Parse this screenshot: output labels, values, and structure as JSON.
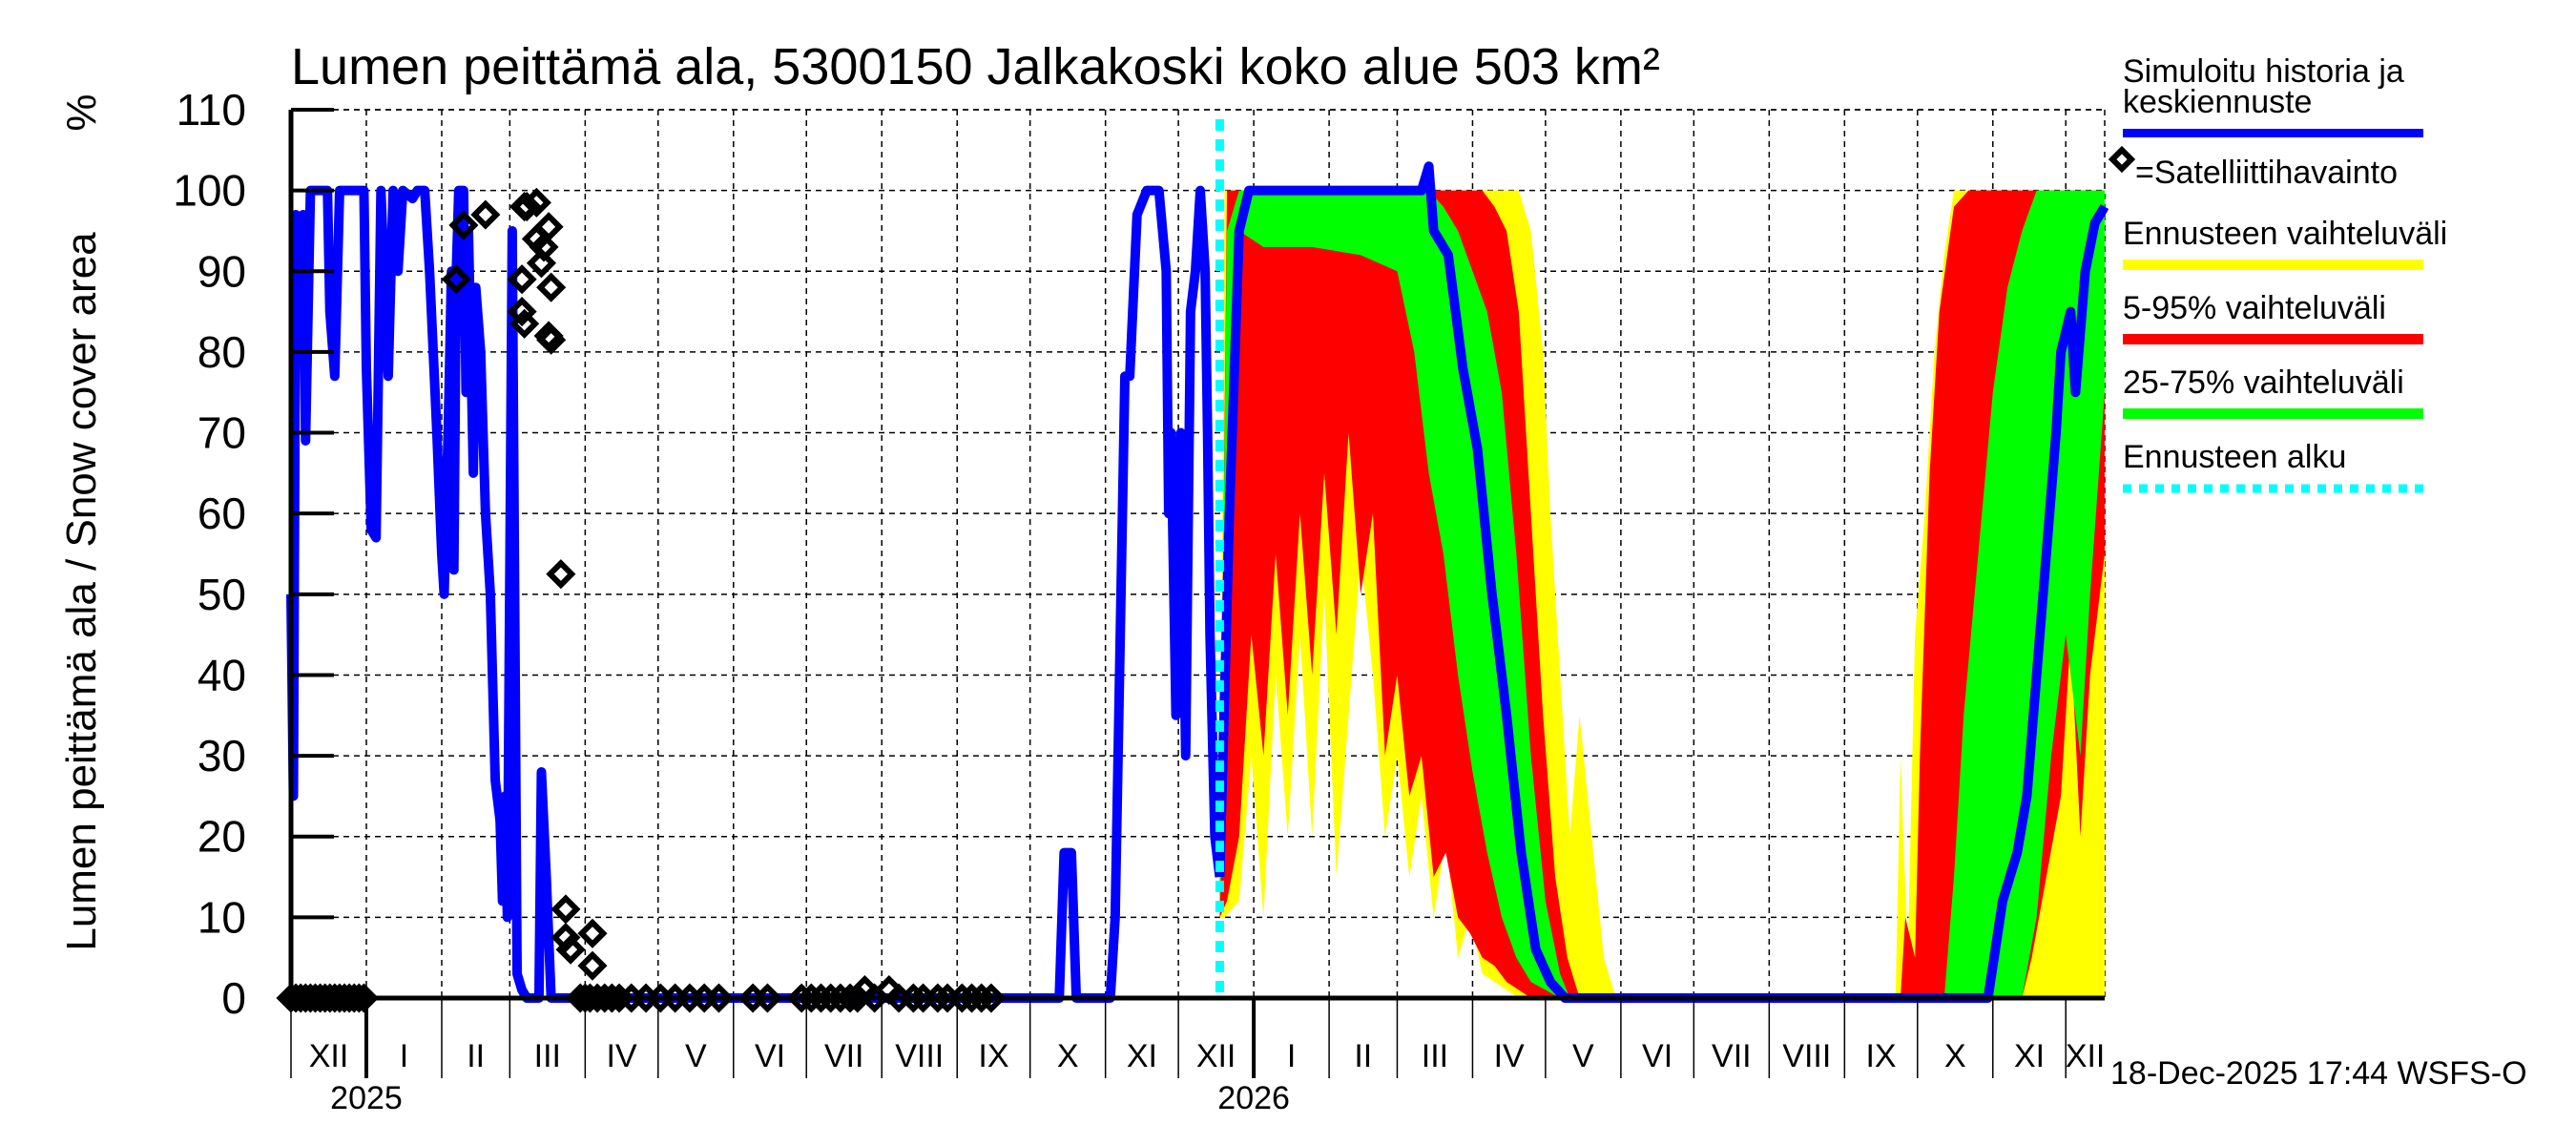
{
  "chart_data": {
    "type": "area",
    "title": "Lumen peittämä ala, 5300150 Jalkakoski koko alue 503 km²",
    "ylabel": "Lumen peittämä ala / Snow cover area",
    "yunit": "%",
    "ylim": [
      0,
      110
    ],
    "yticks": [
      0,
      10,
      20,
      30,
      40,
      50,
      60,
      70,
      80,
      90,
      100,
      110
    ],
    "x_unit": "days since 2024-12-01",
    "xlim": [
      0,
      746
    ],
    "grid": true,
    "legend_position": "right",
    "months": [
      {
        "label": "XII",
        "start": 0
      },
      {
        "label": "I",
        "start": 31
      },
      {
        "label": "II",
        "start": 62
      },
      {
        "label": "III",
        "start": 90
      },
      {
        "label": "IV",
        "start": 121
      },
      {
        "label": "V",
        "start": 151
      },
      {
        "label": "VI",
        "start": 182
      },
      {
        "label": "VII",
        "start": 212
      },
      {
        "label": "VIII",
        "start": 243
      },
      {
        "label": "IX",
        "start": 274
      },
      {
        "label": "X",
        "start": 304
      },
      {
        "label": "XI",
        "start": 335
      },
      {
        "label": "XII",
        "start": 365
      },
      {
        "label": "I",
        "start": 396
      },
      {
        "label": "II",
        "start": 427
      },
      {
        "label": "III",
        "start": 455
      },
      {
        "label": "IV",
        "start": 486
      },
      {
        "label": "V",
        "start": 516
      },
      {
        "label": "VI",
        "start": 547
      },
      {
        "label": "VII",
        "start": 577
      },
      {
        "label": "VIII",
        "start": 608
      },
      {
        "label": "IX",
        "start": 639
      },
      {
        "label": "X",
        "start": 669
      },
      {
        "label": "XI",
        "start": 700
      },
      {
        "label": "XII",
        "start": 730
      }
    ],
    "years": [
      {
        "label": "2025",
        "start": 31
      },
      {
        "label": "2026",
        "start": 396
      }
    ],
    "forecast_start": 382,
    "legend": {
      "history": "Simuloitu historia ja keskiennuste",
      "history_line1": "Simuloitu historia ja",
      "history_line2": "keskiennuste",
      "satellite": "=Satelliittihavainto",
      "range": "Ennusteen vaihteluväli",
      "p5_95": "5-95% vaihteluväli",
      "p25_75": "25-75% vaihteluväli",
      "start": "Ennusteen alku"
    },
    "colors": {
      "history": "#0000ff",
      "range": "#ffff00",
      "p5_95": "#ff0000",
      "p25_75": "#00ff00",
      "start": "#00ffff",
      "satellite": "#000000"
    },
    "history": [
      [
        0,
        50
      ],
      [
        1,
        25
      ],
      [
        2,
        97
      ],
      [
        4,
        85
      ],
      [
        5,
        97
      ],
      [
        6,
        69
      ],
      [
        8,
        100
      ],
      [
        15,
        100
      ],
      [
        16,
        85
      ],
      [
        18,
        77
      ],
      [
        20,
        100
      ],
      [
        30,
        100
      ],
      [
        31,
        78
      ],
      [
        33,
        58
      ],
      [
        35,
        57
      ],
      [
        37,
        100
      ],
      [
        40,
        77
      ],
      [
        42,
        100
      ],
      [
        44,
        90
      ],
      [
        46,
        100
      ],
      [
        50,
        99
      ],
      [
        52,
        100
      ],
      [
        55,
        100
      ],
      [
        57,
        90
      ],
      [
        60,
        70
      ],
      [
        62,
        55
      ],
      [
        63,
        50
      ],
      [
        65,
        75
      ],
      [
        66,
        90
      ],
      [
        67,
        53
      ],
      [
        68,
        90
      ],
      [
        69,
        100
      ],
      [
        71,
        100
      ],
      [
        72,
        75
      ],
      [
        73,
        95
      ],
      [
        75,
        65
      ],
      [
        76,
        88
      ],
      [
        78,
        80
      ],
      [
        80,
        60
      ],
      [
        82,
        50
      ],
      [
        84,
        27
      ],
      [
        86,
        22
      ],
      [
        87,
        12
      ],
      [
        88,
        25
      ],
      [
        89,
        10
      ],
      [
        91,
        95
      ],
      [
        92,
        50
      ],
      [
        93,
        3
      ],
      [
        95,
        1
      ],
      [
        97,
        0
      ],
      [
        100,
        0
      ],
      [
        102,
        0
      ],
      [
        103,
        28
      ],
      [
        105,
        15
      ],
      [
        107,
        0
      ],
      [
        316,
        0
      ],
      [
        318,
        18
      ],
      [
        321,
        18
      ],
      [
        323,
        0
      ],
      [
        337,
        0
      ],
      [
        339,
        10
      ],
      [
        343,
        77
      ],
      [
        345,
        77
      ],
      [
        348,
        97
      ],
      [
        352,
        100
      ],
      [
        357,
        100
      ],
      [
        360,
        90
      ],
      [
        361,
        60
      ],
      [
        362,
        70
      ],
      [
        364,
        35
      ],
      [
        366,
        70
      ],
      [
        368,
        30
      ],
      [
        370,
        85
      ],
      [
        372,
        90
      ],
      [
        374,
        100
      ],
      [
        376,
        90
      ],
      [
        377,
        70
      ],
      [
        378,
        45
      ],
      [
        380,
        20
      ],
      [
        382,
        15
      ]
    ],
    "median_forecast": [
      [
        382,
        15
      ],
      [
        386,
        60
      ],
      [
        390,
        95
      ],
      [
        394,
        100
      ],
      [
        465,
        100
      ],
      [
        468,
        103
      ],
      [
        470,
        95
      ],
      [
        476,
        92
      ],
      [
        482,
        78
      ],
      [
        488,
        68
      ],
      [
        494,
        50
      ],
      [
        500,
        35
      ],
      [
        506,
        18
      ],
      [
        512,
        6
      ],
      [
        518,
        2
      ],
      [
        524,
        0
      ],
      [
        698,
        0
      ],
      [
        700,
        4
      ],
      [
        704,
        12
      ],
      [
        710,
        18
      ],
      [
        714,
        25
      ],
      [
        718,
        40
      ],
      [
        722,
        55
      ],
      [
        726,
        70
      ],
      [
        728,
        80
      ],
      [
        732,
        85
      ],
      [
        734,
        75
      ],
      [
        738,
        90
      ],
      [
        742,
        96
      ],
      [
        746,
        98
      ]
    ],
    "range_band": [
      [
        [
          382,
          10,
          12
        ],
        [
          384,
          10,
          100
        ],
        [
          390,
          12,
          100
        ],
        [
          395,
          30,
          100
        ],
        [
          400,
          10,
          100
        ],
        [
          405,
          40,
          100
        ],
        [
          410,
          20,
          100
        ],
        [
          415,
          45,
          100
        ],
        [
          420,
          20,
          100
        ],
        [
          425,
          50,
          100
        ],
        [
          430,
          15,
          100
        ],
        [
          435,
          35,
          100
        ],
        [
          440,
          55,
          100
        ],
        [
          445,
          40,
          100
        ],
        [
          450,
          20,
          100
        ],
        [
          455,
          30,
          100
        ],
        [
          460,
          15,
          100
        ],
        [
          465,
          25,
          100
        ],
        [
          470,
          10,
          100
        ],
        [
          475,
          20,
          100
        ],
        [
          480,
          5,
          100
        ],
        [
          485,
          10,
          100
        ],
        [
          490,
          3,
          100
        ],
        [
          495,
          2,
          100
        ],
        [
          500,
          1,
          100
        ],
        [
          505,
          0,
          100
        ],
        [
          510,
          0,
          95
        ],
        [
          515,
          0,
          80
        ],
        [
          518,
          0,
          60
        ],
        [
          522,
          0,
          40
        ],
        [
          526,
          0,
          20
        ],
        [
          530,
          0,
          35
        ],
        [
          535,
          0,
          20
        ],
        [
          540,
          0,
          5
        ],
        [
          545,
          0,
          0
        ]
      ],
      [
        [
          660,
          0,
          0
        ],
        [
          662,
          0,
          30
        ],
        [
          665,
          0,
          5
        ],
        [
          668,
          0,
          45
        ],
        [
          672,
          0,
          60
        ],
        [
          676,
          0,
          80
        ],
        [
          680,
          0,
          92
        ],
        [
          684,
          0,
          100
        ],
        [
          746,
          0,
          100
        ]
      ]
    ],
    "p5_95_band": [
      [
        [
          382,
          10,
          15
        ],
        [
          385,
          12,
          100
        ],
        [
          390,
          20,
          100
        ],
        [
          395,
          45,
          100
        ],
        [
          400,
          30,
          100
        ],
        [
          405,
          55,
          100
        ],
        [
          410,
          35,
          100
        ],
        [
          415,
          60,
          100
        ],
        [
          420,
          40,
          100
        ],
        [
          425,
          65,
          100
        ],
        [
          430,
          45,
          100
        ],
        [
          435,
          70,
          100
        ],
        [
          440,
          50,
          100
        ],
        [
          445,
          60,
          100
        ],
        [
          450,
          30,
          100
        ],
        [
          455,
          40,
          100
        ],
        [
          460,
          25,
          100
        ],
        [
          465,
          30,
          100
        ],
        [
          470,
          15,
          100
        ],
        [
          475,
          18,
          100
        ],
        [
          480,
          10,
          100
        ],
        [
          485,
          8,
          100
        ],
        [
          490,
          5,
          100
        ],
        [
          495,
          4,
          98
        ],
        [
          500,
          2,
          95
        ],
        [
          505,
          1,
          85
        ],
        [
          510,
          0,
          60
        ],
        [
          515,
          0,
          35
        ],
        [
          520,
          0,
          15
        ],
        [
          525,
          0,
          5
        ],
        [
          530,
          0,
          0
        ]
      ],
      [
        [
          662,
          0,
          0
        ],
        [
          664,
          0,
          10
        ],
        [
          668,
          0,
          5
        ],
        [
          670,
          0,
          30
        ],
        [
          674,
          0,
          65
        ],
        [
          678,
          0,
          85
        ],
        [
          684,
          0,
          98
        ],
        [
          690,
          0,
          100
        ],
        [
          712,
          0,
          100
        ],
        [
          716,
          5,
          100
        ],
        [
          722,
          15,
          100
        ],
        [
          728,
          25,
          100
        ],
        [
          732,
          45,
          100
        ],
        [
          736,
          20,
          100
        ],
        [
          740,
          40,
          100
        ],
        [
          746,
          55,
          100
        ]
      ]
    ],
    "p25_75_band": [
      [
        [
          382,
          10,
          15
        ],
        [
          385,
          40,
          95
        ],
        [
          390,
          95,
          100
        ],
        [
          400,
          93,
          100
        ],
        [
          420,
          93,
          100
        ],
        [
          440,
          92,
          100
        ],
        [
          455,
          90,
          100
        ],
        [
          462,
          80,
          100
        ],
        [
          468,
          65,
          100
        ],
        [
          474,
          55,
          98
        ],
        [
          480,
          40,
          95
        ],
        [
          486,
          28,
          90
        ],
        [
          492,
          18,
          85
        ],
        [
          498,
          10,
          75
        ],
        [
          504,
          5,
          55
        ],
        [
          510,
          2,
          30
        ],
        [
          516,
          1,
          12
        ],
        [
          522,
          0,
          3
        ],
        [
          526,
          0,
          0
        ]
      ],
      [
        [
          680,
          0,
          0
        ],
        [
          684,
          0,
          15
        ],
        [
          688,
          0,
          35
        ],
        [
          694,
          0,
          55
        ],
        [
          700,
          0,
          75
        ],
        [
          706,
          0,
          88
        ],
        [
          712,
          0,
          95
        ],
        [
          718,
          10,
          100
        ],
        [
          724,
          30,
          100
        ],
        [
          730,
          45,
          100
        ],
        [
          736,
          30,
          100
        ],
        [
          740,
          50,
          100
        ],
        [
          746,
          75,
          100
        ]
      ]
    ],
    "satellite": [
      [
        0,
        0
      ],
      [
        2,
        0
      ],
      [
        4,
        0
      ],
      [
        6,
        0
      ],
      [
        8,
        0
      ],
      [
        10,
        0
      ],
      [
        12,
        0
      ],
      [
        14,
        0
      ],
      [
        16,
        0
      ],
      [
        18,
        0
      ],
      [
        20,
        0
      ],
      [
        22,
        0
      ],
      [
        24,
        0
      ],
      [
        26,
        0
      ],
      [
        28,
        0
      ],
      [
        30,
        0
      ],
      [
        68,
        89
      ],
      [
        71,
        95.7
      ],
      [
        80,
        97
      ],
      [
        95,
        89
      ],
      [
        95,
        85
      ],
      [
        96,
        83.5
      ],
      [
        96,
        98
      ],
      [
        97,
        98
      ],
      [
        101,
        98.5
      ],
      [
        101,
        94
      ],
      [
        103,
        91
      ],
      [
        104,
        93
      ],
      [
        106,
        95.5
      ],
      [
        107,
        88
      ],
      [
        106,
        82
      ],
      [
        107,
        81.5
      ],
      [
        111,
        52.5
      ],
      [
        113,
        11
      ],
      [
        113,
        7.5
      ],
      [
        115,
        6
      ],
      [
        124,
        8
      ],
      [
        124,
        4
      ],
      [
        119,
        0
      ],
      [
        121,
        0
      ],
      [
        123,
        0
      ],
      [
        126,
        0
      ],
      [
        129,
        0
      ],
      [
        132,
        0
      ],
      [
        135,
        0
      ],
      [
        140,
        0
      ],
      [
        146,
        0
      ],
      [
        152,
        0
      ],
      [
        158,
        0
      ],
      [
        164,
        0
      ],
      [
        170,
        0
      ],
      [
        176,
        0
      ],
      [
        190,
        0
      ],
      [
        196,
        0
      ],
      [
        210,
        0
      ],
      [
        214,
        0
      ],
      [
        218,
        0
      ],
      [
        222,
        0
      ],
      [
        226,
        0
      ],
      [
        230,
        0
      ],
      [
        233,
        0
      ],
      [
        236,
        1
      ],
      [
        240,
        0
      ],
      [
        246,
        1
      ],
      [
        250,
        0
      ],
      [
        256,
        0
      ],
      [
        260,
        0
      ],
      [
        266,
        0
      ],
      [
        270,
        0
      ],
      [
        276,
        0
      ],
      [
        280,
        0
      ],
      [
        284,
        0
      ],
      [
        288,
        0
      ]
    ]
  },
  "footer": "18-Dec-2025 17:44 WSFS-O"
}
